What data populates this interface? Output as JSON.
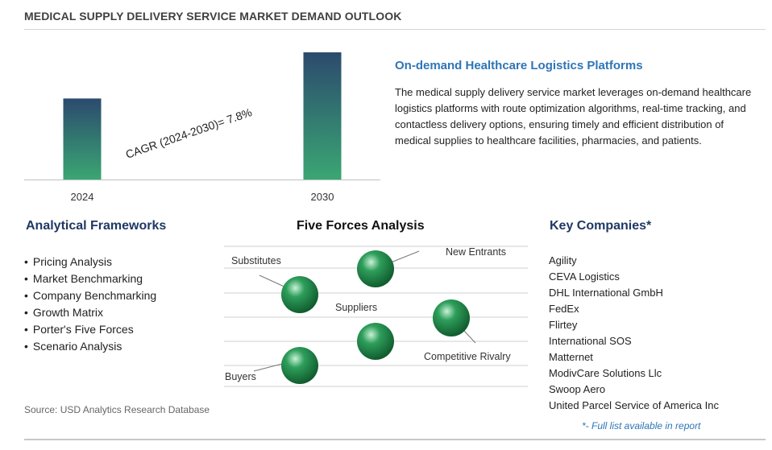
{
  "title": "MEDICAL SUPPLY DELIVERY SERVICE MARKET DEMAND OUTLOOK",
  "chart_data": {
    "type": "bar",
    "categories": [
      "2024",
      "2030"
    ],
    "values": [
      1.0,
      1.57
    ],
    "annotation": "CAGR (2024-2030)=  7.8%",
    "colors": {
      "bar_top": "#2c4a6e",
      "bar_bottom": "#3aa673",
      "axis": "#bfbfbf"
    }
  },
  "side": {
    "heading": "On-demand Healthcare Logistics Platforms",
    "text": "The medical supply delivery service market leverages on-demand healthcare logistics platforms with route optimization algorithms, real-time tracking, and contactless delivery options, ensuring timely and efficient distribution of medical supplies to healthcare facilities, pharmacies, and patients."
  },
  "frameworks": {
    "heading": "Analytical Frameworks",
    "items": [
      "Pricing Analysis",
      "Market Benchmarking",
      "Company Benchmarking",
      "Growth Matrix",
      "Porter's Five Forces",
      "Scenario Analysis"
    ]
  },
  "five_forces": {
    "heading": "Five Forces Analysis",
    "labels": {
      "new_entrants": "New Entrants",
      "substitutes": "Substitutes",
      "suppliers": "Suppliers",
      "competitive_rivalry": "Competitive Rivalry",
      "buyers": "Buyers"
    },
    "sphere_color": "#2e9e5b"
  },
  "companies": {
    "heading": "Key Companies*",
    "items": [
      "Agility",
      "CEVA Logistics",
      "DHL International GmbH",
      "FedEx",
      "Flirtey",
      "International SOS",
      "Matternet",
      "ModivCare Solutions Llc",
      "Swoop Aero",
      "United Parcel Service of America Inc"
    ],
    "note": "*- Full list available in report"
  },
  "source": "Source: USD Analytics Research Database"
}
